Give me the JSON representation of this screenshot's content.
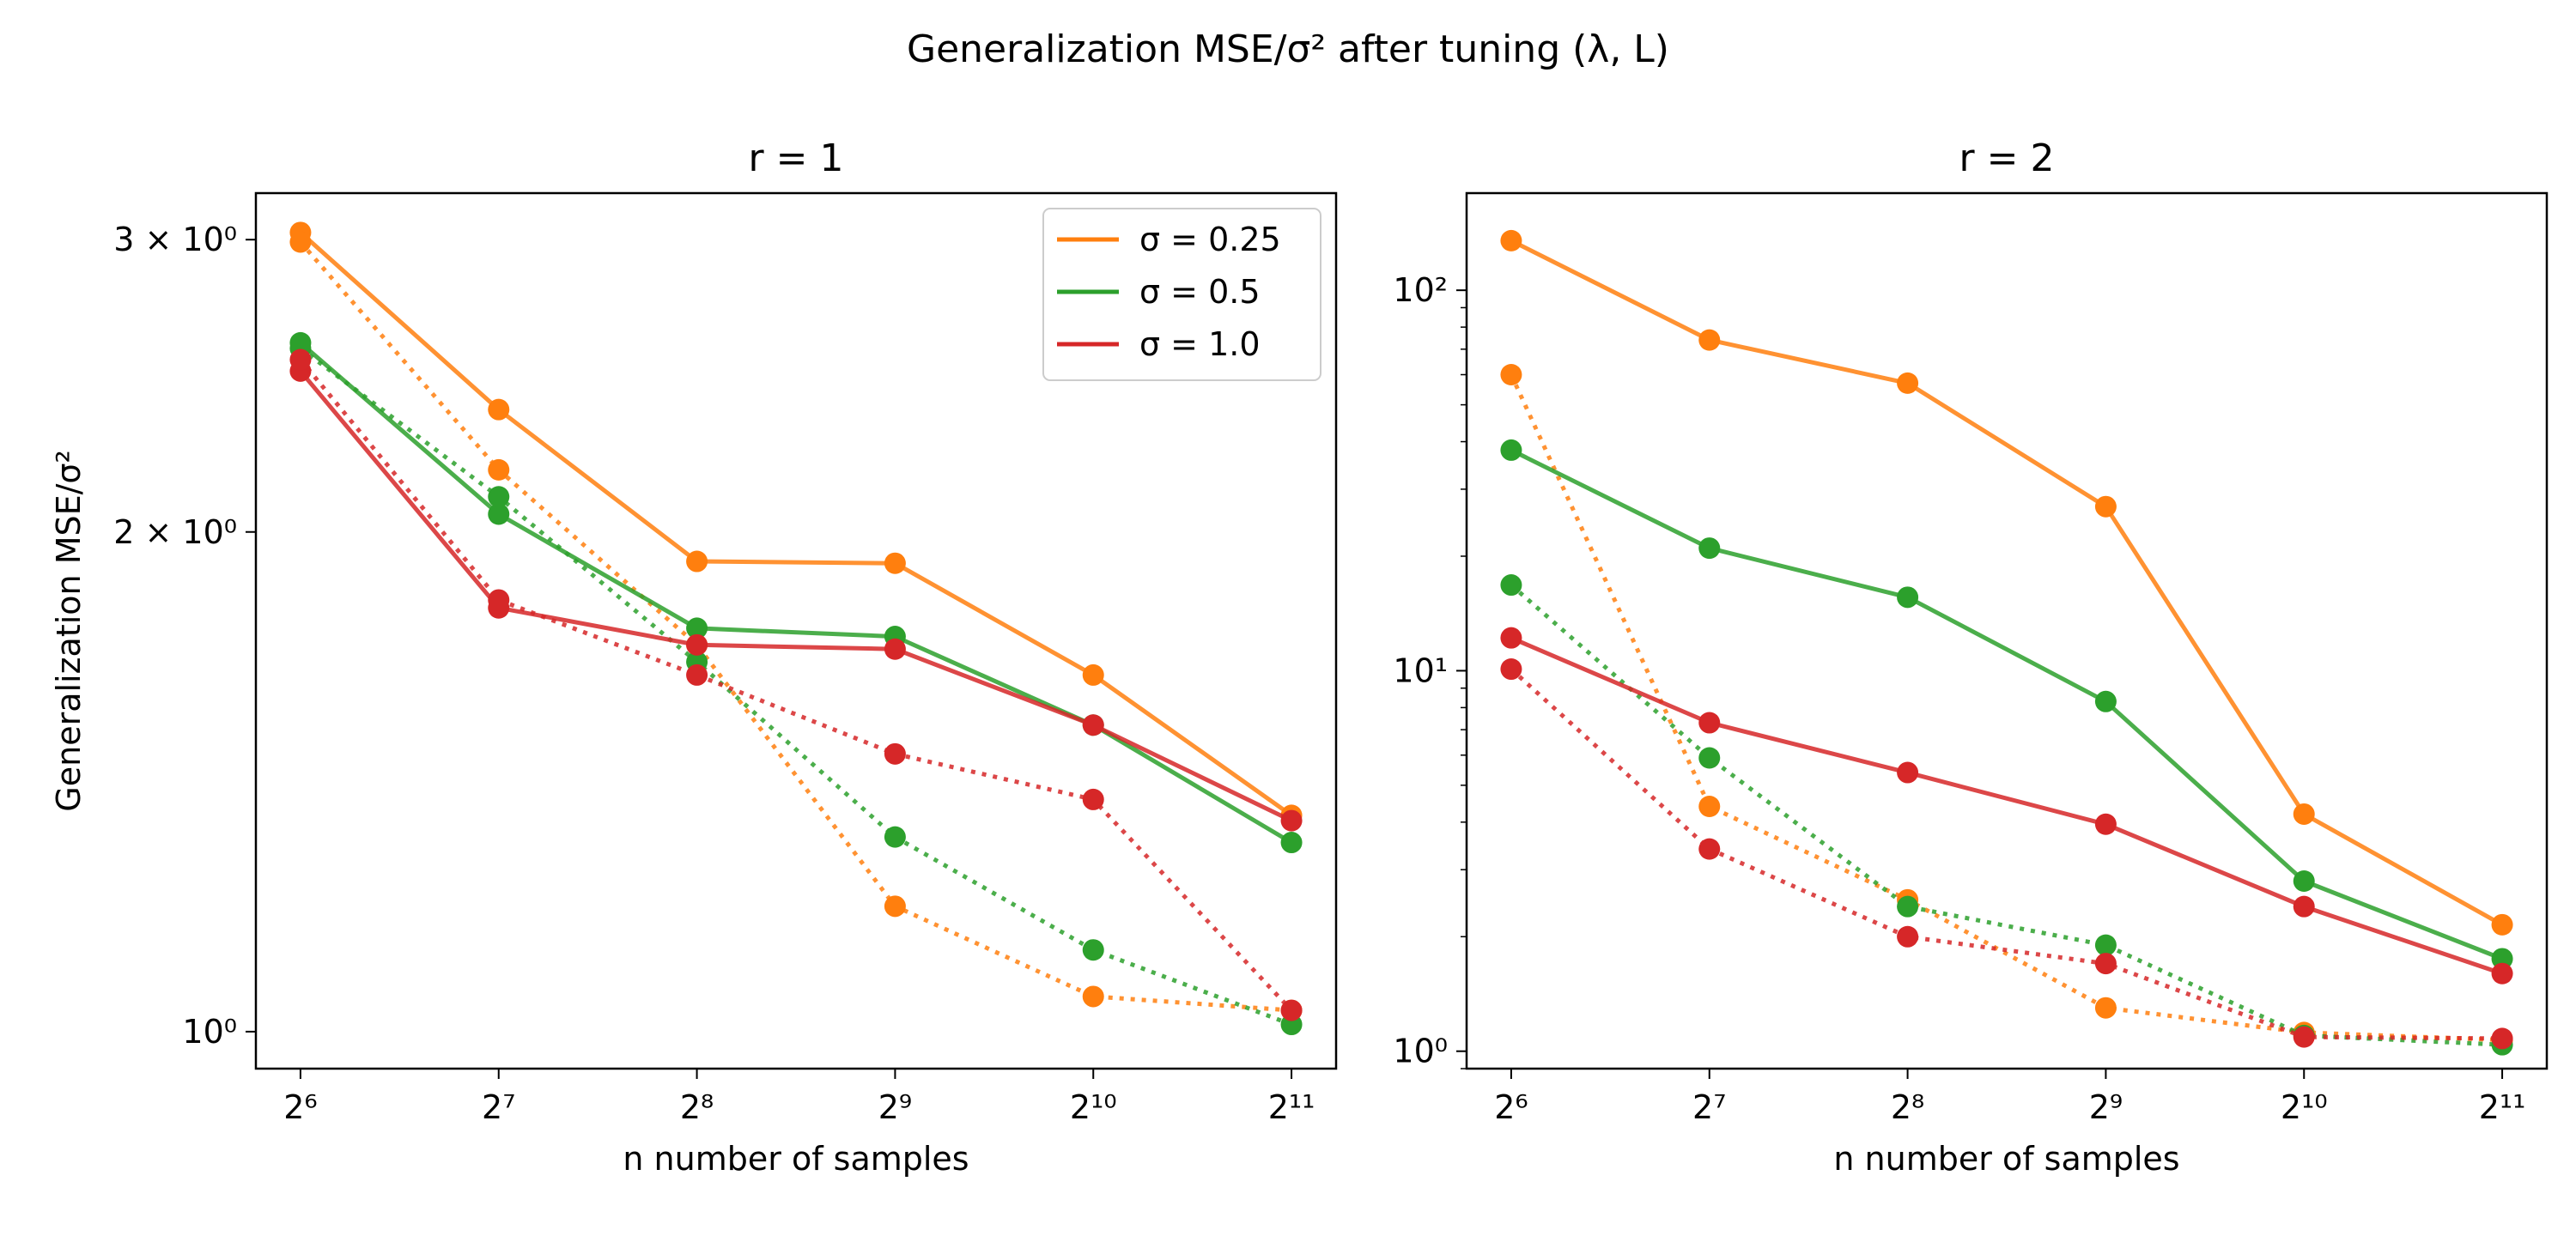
{
  "figure": {
    "suptitle": "Generalization MSE/σ² after tuning (λ, L)"
  },
  "chart_data": [
    {
      "type": "line",
      "title": "r = 1",
      "xlabel": "n number of samples",
      "ylabel": "Generalization MSE/σ²",
      "x": [
        64,
        128,
        256,
        512,
        1024,
        2048
      ],
      "x_tick_labels": [
        "2⁶",
        "2⁷",
        "2⁸",
        "2⁹",
        "2¹⁰",
        "2¹¹"
      ],
      "x_scale": "log2",
      "y_scale": "log",
      "ylim": [
        0.95,
        3.2
      ],
      "y_ticks": [
        {
          "value": 3,
          "label": "3 × 10⁰"
        },
        {
          "value": 2,
          "label": "2 × 10⁰"
        },
        {
          "value": 1,
          "label": "10⁰"
        }
      ],
      "grid": false,
      "legend": {
        "placement": "top-right",
        "entries": [
          {
            "label": "σ = 0.25",
            "color": "#ff7f0e"
          },
          {
            "label": "σ = 0.5",
            "color": "#2ca02c"
          },
          {
            "label": "σ = 1.0",
            "color": "#d62728"
          }
        ]
      },
      "series": [
        {
          "sigma": 0.25,
          "style": "solid",
          "color": "#ff7f0e",
          "values": [
            3.03,
            2.37,
            1.92,
            1.915,
            1.64,
            1.35
          ]
        },
        {
          "sigma": 0.25,
          "style": "dotted",
          "color": "#ff7f0e",
          "values": [
            2.99,
            2.18,
            1.71,
            1.19,
            1.05,
            1.03
          ]
        },
        {
          "sigma": 0.5,
          "style": "solid",
          "color": "#2ca02c",
          "values": [
            2.6,
            2.05,
            1.75,
            1.73,
            1.53,
            1.3
          ]
        },
        {
          "sigma": 0.5,
          "style": "dotted",
          "color": "#2ca02c",
          "values": [
            2.58,
            2.1,
            1.67,
            1.31,
            1.12,
            1.01
          ]
        },
        {
          "sigma": 1.0,
          "style": "solid",
          "color": "#d62728",
          "values": [
            2.5,
            1.8,
            1.71,
            1.7,
            1.53,
            1.34
          ]
        },
        {
          "sigma": 1.0,
          "style": "dotted",
          "color": "#d62728",
          "values": [
            2.54,
            1.82,
            1.64,
            1.47,
            1.38,
            1.03
          ]
        }
      ]
    },
    {
      "type": "line",
      "title": "r = 2",
      "xlabel": "n number of samples",
      "ylabel": "",
      "x": [
        64,
        128,
        256,
        512,
        1024,
        2048
      ],
      "x_tick_labels": [
        "2⁶",
        "2⁷",
        "2⁸",
        "2⁹",
        "2¹⁰",
        "2¹¹"
      ],
      "x_scale": "log2",
      "y_scale": "log",
      "ylim": [
        0.9,
        180
      ],
      "y_ticks": [
        {
          "value": 100,
          "label": "10²"
        },
        {
          "value": 10,
          "label": "10¹"
        },
        {
          "value": 1,
          "label": "10⁰"
        }
      ],
      "grid": false,
      "series": [
        {
          "sigma": 0.25,
          "style": "solid",
          "color": "#ff7f0e",
          "values": [
            135,
            74,
            57,
            27,
            4.2,
            2.15
          ]
        },
        {
          "sigma": 0.25,
          "style": "dotted",
          "color": "#ff7f0e",
          "values": [
            60,
            4.4,
            2.5,
            1.3,
            1.12,
            1.07
          ]
        },
        {
          "sigma": 0.5,
          "style": "solid",
          "color": "#2ca02c",
          "values": [
            38,
            21,
            15.6,
            8.3,
            2.8,
            1.75
          ]
        },
        {
          "sigma": 0.5,
          "style": "dotted",
          "color": "#2ca02c",
          "values": [
            16.8,
            5.9,
            2.4,
            1.9,
            1.1,
            1.04
          ]
        },
        {
          "sigma": 1.0,
          "style": "solid",
          "color": "#d62728",
          "values": [
            12.2,
            7.3,
            5.4,
            3.95,
            2.4,
            1.6
          ]
        },
        {
          "sigma": 1.0,
          "style": "dotted",
          "color": "#d62728",
          "values": [
            10.1,
            3.4,
            2.0,
            1.7,
            1.09,
            1.08
          ]
        }
      ]
    }
  ]
}
